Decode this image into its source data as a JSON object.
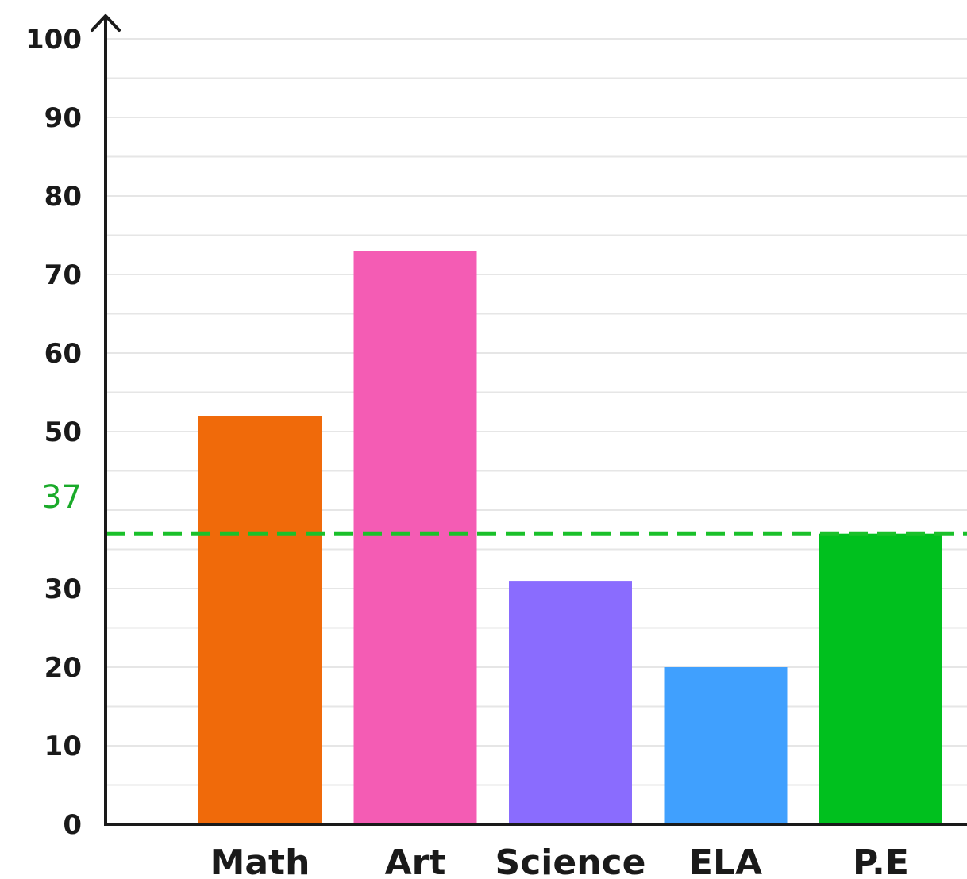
{
  "chart_data": {
    "type": "bar",
    "categories": [
      "Math",
      "Art",
      "Science",
      "ELA",
      "P.E"
    ],
    "values": [
      52,
      73,
      31,
      20,
      37
    ],
    "colors": [
      "#f06a0a",
      "#f45cb4",
      "#8a6cfe",
      "#40a0fe",
      "#00c01e"
    ],
    "y_ticks": [
      "0",
      "10",
      "20",
      "30",
      "50",
      "60",
      "70",
      "80",
      "90",
      "100"
    ],
    "ylim": [
      0,
      100
    ],
    "minor_grid_step": 5,
    "grid": true,
    "reference_line": {
      "value": 37,
      "label": "37",
      "color": "#1ac02a",
      "style": "dashed"
    },
    "title": "",
    "xlabel": "",
    "ylabel": ""
  }
}
